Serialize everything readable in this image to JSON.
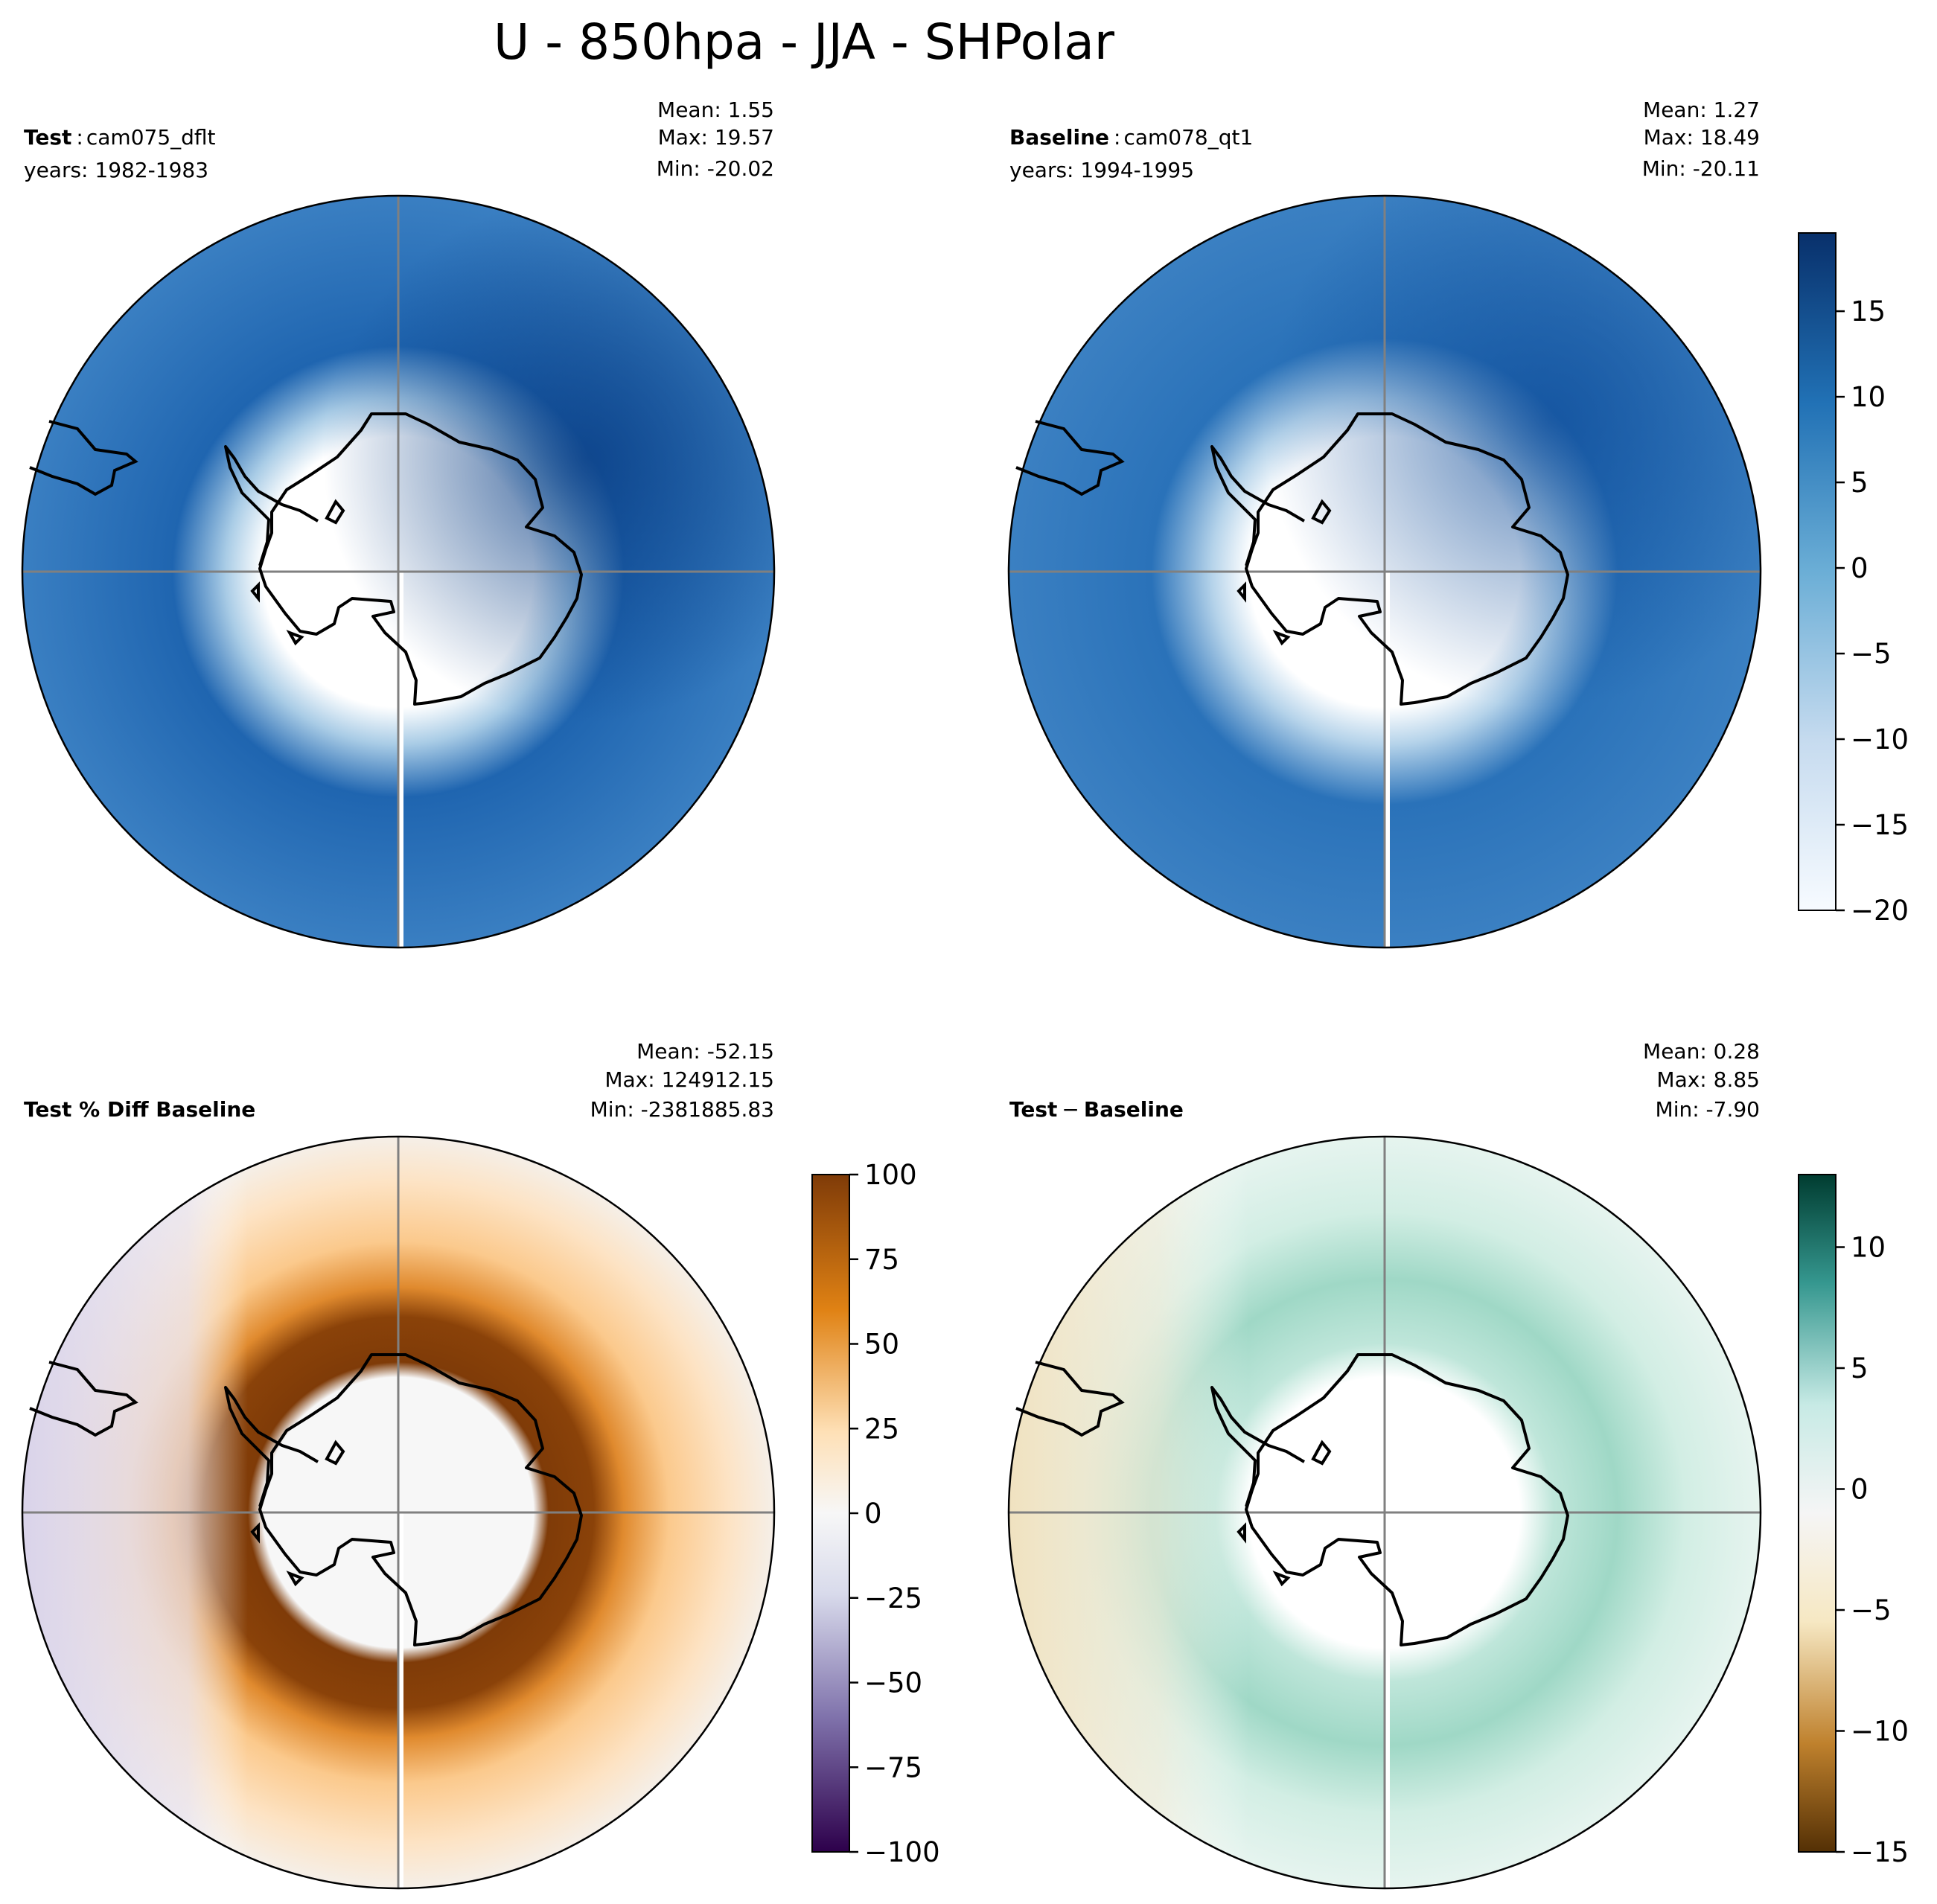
{
  "title": "U - 850hpa - JJA - SHPolar",
  "chart_data": [
    {
      "type": "heatmap",
      "projection": "south-polar-stereographic",
      "panel": "test",
      "label_bold": "Test",
      "label_sep": ":",
      "label_rest": "cam075_dflt",
      "years": "years: 1982-1983",
      "stats": {
        "mean": "Mean:  1.55",
        "max": "Max: 19.57",
        "min": "Min: -20.02"
      },
      "colormap": "Blues",
      "value_range": [
        -20,
        19.57
      ]
    },
    {
      "type": "heatmap",
      "projection": "south-polar-stereographic",
      "panel": "baseline",
      "label_bold": "Baseline",
      "label_sep": ":",
      "label_rest": "cam078_qt1",
      "years": "years: 1994-1995",
      "stats": {
        "mean": "Mean:  1.27",
        "max": "Max: 18.49",
        "min": "Min: -20.11"
      },
      "colormap": "Blues",
      "value_range": [
        -20,
        19.57
      ],
      "colorbar": {
        "range": [
          -20,
          19.57
        ],
        "ticks": [
          "15",
          "10",
          "5",
          "0",
          "−5",
          "−10",
          "−15",
          "−20"
        ],
        "tick_values": [
          15,
          10,
          5,
          0,
          -5,
          -10,
          -15,
          -20
        ]
      }
    },
    {
      "type": "heatmap",
      "projection": "south-polar-stereographic",
      "panel": "pct-diff",
      "label_bold": "Test % Diff Baseline",
      "stats": {
        "mean": "Mean: -52.15",
        "max": "Max: 124912.15",
        "min": "Min: -2381885.83"
      },
      "colormap": "PuOr_r",
      "value_range": [
        -100,
        100
      ],
      "colorbar": {
        "range": [
          -100,
          100
        ],
        "ticks": [
          "100",
          "75",
          "50",
          "25",
          "0",
          "−25",
          "−50",
          "−75",
          "−100"
        ],
        "tick_values": [
          100,
          75,
          50,
          25,
          0,
          -25,
          -50,
          -75,
          -100
        ]
      }
    },
    {
      "type": "heatmap",
      "projection": "south-polar-stereographic",
      "panel": "diff",
      "label_bold": "Test",
      "label_sep": "−",
      "label_rest": "Baseline",
      "label_rest_bold": true,
      "stats": {
        "mean": "Mean:  0.28",
        "max": "Max:  8.85",
        "min": "Min: -7.90"
      },
      "colormap": "BrBG",
      "value_range": [
        -15,
        13
      ],
      "colorbar": {
        "range": [
          -15,
          13
        ],
        "ticks": [
          "10",
          "5",
          "0",
          "−5",
          "−10",
          "−15"
        ],
        "tick_values": [
          10,
          5,
          0,
          -5,
          -10,
          -15
        ]
      }
    }
  ],
  "colors": {
    "blue_dark": "#0d4a96",
    "blue_mid": "#2f78bd",
    "blue_light": "#6fa9d6",
    "white": "#ffffff",
    "orange_dark": "#7f3b08",
    "orange_mid": "#f5a950",
    "orange_light": "#fde0b8",
    "purple_light": "#d6d0e8",
    "purple_dark": "#2d004b",
    "teal_light": "#c7eadf",
    "teal_mid": "#9ed8c6",
    "teal_dark": "#003c30",
    "tan_light": "#f3e4c4",
    "brown_dark": "#543005",
    "land_fill": "#f7f7f7",
    "gridline": "#808080"
  }
}
